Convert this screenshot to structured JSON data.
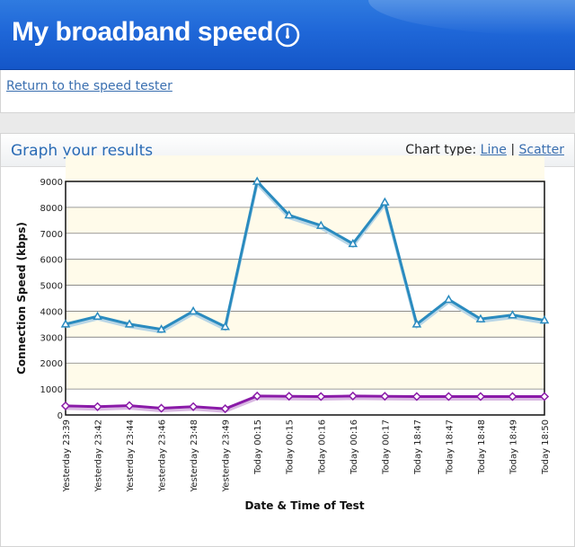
{
  "header": {
    "title": "My broadband speed"
  },
  "nav": {
    "return_label": "Return to the speed tester"
  },
  "panel": {
    "title": "Graph your results",
    "chart_type_label": "Chart type:",
    "line_label": "Line",
    "separator": "|",
    "scatter_label": "Scatter"
  },
  "colors": {
    "header_blue": "#1f67d8",
    "series_blue": "#2a8bbf",
    "series_purple": "#8a1aa8",
    "band": "#fffbea"
  },
  "chart_data": {
    "type": "line",
    "title": "",
    "xlabel": "Date & Time of Test",
    "ylabel": "Connection Speed (kbps)",
    "ylim": [
      0,
      9000
    ],
    "yticks": [
      0,
      1000,
      2000,
      3000,
      4000,
      5000,
      6000,
      7000,
      8000,
      9000
    ],
    "grid": true,
    "categories": [
      "Yesterday 23:39",
      "Yesterday 23:42",
      "Yesterday 23:44",
      "Yesterday 23:46",
      "Yesterday 23:48",
      "Yesterday 23:49",
      "Today 00:15",
      "Today 00:15",
      "Today 00:16",
      "Today 00:16",
      "Today 00:17",
      "Today 18:47",
      "Today 18:47",
      "Today 18:48",
      "Today 18:49",
      "Today 18:50"
    ],
    "series": [
      {
        "values": [
          3500,
          3800,
          3500,
          3300,
          4000,
          3400,
          9000,
          7700,
          7300,
          6600,
          8200,
          3500,
          4450,
          3700,
          3850,
          3650
        ]
      },
      {
        "values": [
          350,
          320,
          360,
          260,
          320,
          240,
          730,
          720,
          710,
          730,
          720,
          710,
          710,
          710,
          710,
          710
        ]
      }
    ]
  }
}
